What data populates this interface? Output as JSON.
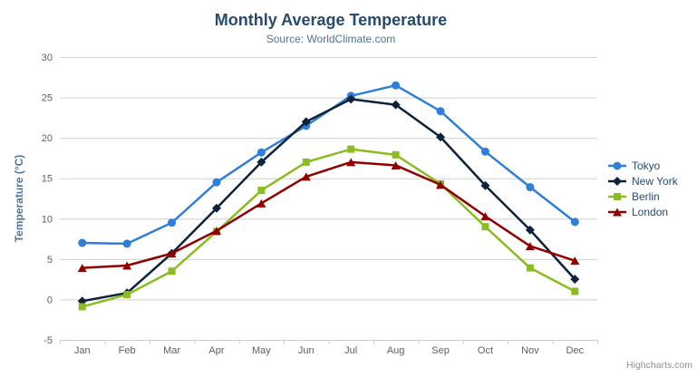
{
  "header": {
    "title": "Monthly Average Temperature",
    "subtitle": "Source: WorldClimate.com"
  },
  "credit_label": "Highcharts.com",
  "export_menu": {
    "icon": "hamburger-icon"
  },
  "colors": {
    "title_text": "#274b6d",
    "subtitle_text": "#4d759e",
    "axis_label_text": "#606060",
    "axis_title_text": "#4d759e",
    "gridline": "#d0d0d0",
    "axis_line": "#c0d0e0",
    "legend_text": "#274b6d",
    "credit_text": "#909090",
    "menu_icon": "#666666"
  },
  "chart_data": {
    "type": "line",
    "title": "Monthly Average Temperature",
    "subtitle": "Source: WorldClimate.com",
    "categories": [
      "Jan",
      "Feb",
      "Mar",
      "Apr",
      "May",
      "Jun",
      "Jul",
      "Aug",
      "Sep",
      "Oct",
      "Nov",
      "Dec"
    ],
    "xlabel": "",
    "ylabel": "Temperature (°C)",
    "ylim": [
      -5,
      30
    ],
    "yticks": [
      -5,
      0,
      5,
      10,
      15,
      20,
      25,
      30
    ],
    "grid": true,
    "legend_position": "right",
    "series": [
      {
        "name": "Tokyo",
        "color": "#2f7ed8",
        "marker": "circle",
        "values": [
          7.0,
          6.9,
          9.5,
          14.5,
          18.2,
          21.5,
          25.2,
          26.5,
          23.3,
          18.3,
          13.9,
          9.6
        ]
      },
      {
        "name": "New York",
        "color": "#0d233a",
        "marker": "diamond",
        "values": [
          -0.2,
          0.8,
          5.7,
          11.3,
          17.0,
          22.0,
          24.8,
          24.1,
          20.1,
          14.1,
          8.6,
          2.5
        ]
      },
      {
        "name": "Berlin",
        "color": "#8bbc21",
        "marker": "square",
        "values": [
          -0.9,
          0.6,
          3.5,
          8.4,
          13.5,
          17.0,
          18.6,
          17.9,
          14.3,
          9.0,
          3.9,
          1.0
        ]
      },
      {
        "name": "London",
        "color": "#910000",
        "marker": "triangle",
        "values": [
          3.9,
          4.2,
          5.7,
          8.5,
          11.9,
          15.2,
          17.0,
          16.6,
          14.2,
          10.3,
          6.6,
          4.8
        ]
      }
    ]
  }
}
